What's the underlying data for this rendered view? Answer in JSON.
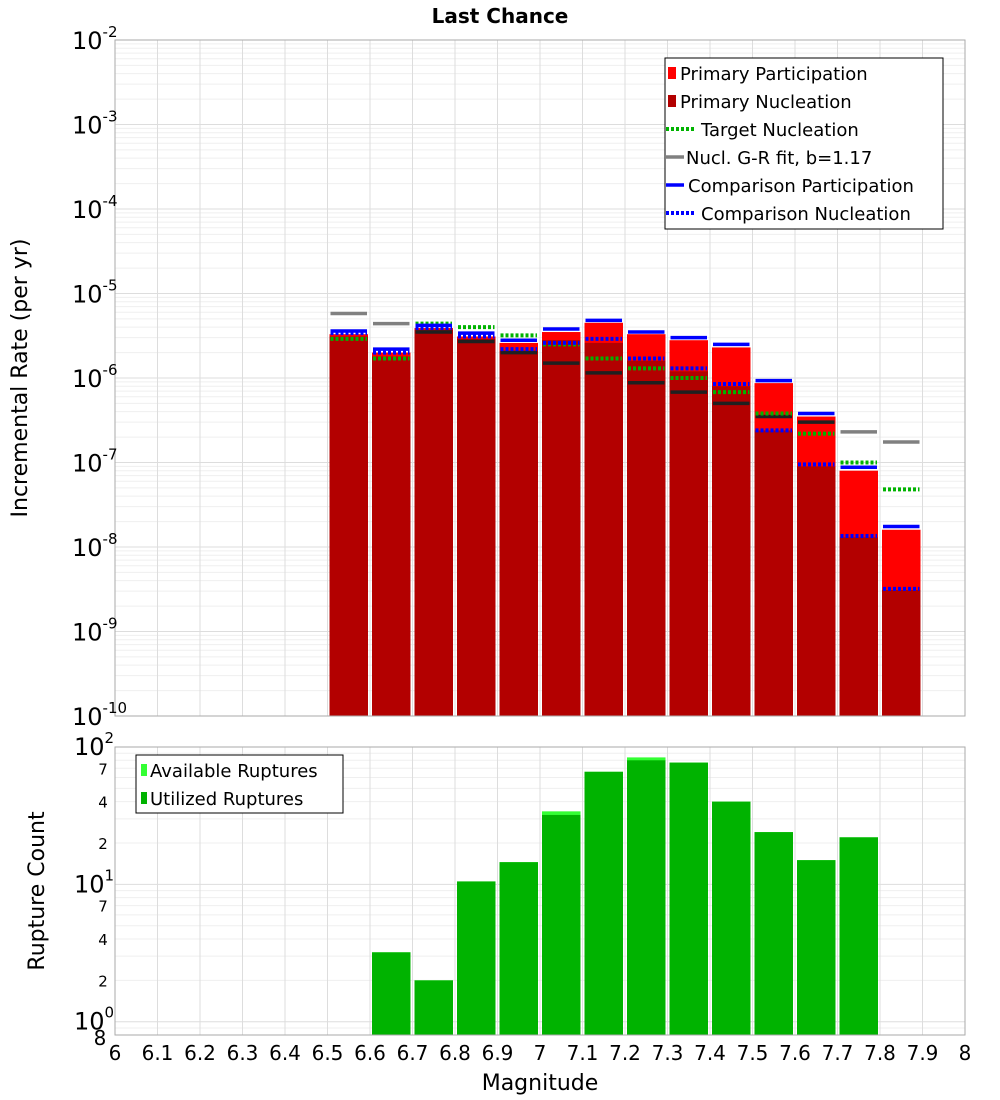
{
  "chart_data": [
    {
      "type": "bar",
      "title": "Last Chance",
      "ylabel": "Incremental Rate (per yr)",
      "yscale": "log",
      "ylim": [
        1e-10,
        0.01
      ],
      "xlim": [
        6,
        8
      ],
      "grid": true,
      "legend_position": "top-right",
      "bin_centers": [
        6.55,
        6.65,
        6.75,
        6.85,
        6.95,
        7.05,
        7.15,
        7.25,
        7.35,
        7.45,
        7.55,
        7.65,
        7.75,
        7.85
      ],
      "series": [
        {
          "name": "Primary Participation",
          "style": "bar",
          "color": "#ff0000",
          "values": [
            3.3e-06,
            2e-06,
            3.9e-06,
            3.1e-06,
            2.6e-06,
            3.5e-06,
            4.5e-06,
            3.3e-06,
            2.8e-06,
            2.3e-06,
            8.7e-07,
            3.5e-07,
            8e-08,
            1.6e-08
          ]
        },
        {
          "name": "Primary Nucleation",
          "style": "bar",
          "color": "#b30000",
          "values": [
            3.1e-06,
            1.8e-06,
            3.7e-06,
            2.9e-06,
            2.1e-06,
            2.8e-06,
            2.6e-06,
            1.6e-06,
            1.2e-06,
            8e-07,
            2.4e-07,
            9e-08,
            1.3e-08,
            3.1e-09
          ]
        },
        {
          "name": "Target Nucleation",
          "style": "dotted",
          "color": "#00b300",
          "values": [
            2.9e-06,
            1.7e-06,
            4.4e-06,
            4e-06,
            3.2e-06,
            2.5e-06,
            1.7e-06,
            1.3e-06,
            1e-06,
            6.8e-07,
            3.8e-07,
            2.2e-07,
            1e-07,
            4.8e-08
          ]
        },
        {
          "name": "Nucl. G-R fit, b=1.17",
          "style": "solid",
          "color": "#808080",
          "values": [
            5.8e-06,
            4.4e-06,
            null,
            null,
            null,
            null,
            null,
            null,
            null,
            null,
            null,
            null,
            2.3e-07,
            1.75e-07
          ]
        },
        {
          "name": "Comparison Participation",
          "style": "solid",
          "color": "#0000ff",
          "values": [
            3.6e-06,
            2.2e-06,
            4.2e-06,
            3.4e-06,
            2.8e-06,
            3.8e-06,
            4.8e-06,
            3.5e-06,
            3e-06,
            2.5e-06,
            9.3e-07,
            3.8e-07,
            8.8e-08,
            1.75e-08
          ]
        },
        {
          "name": "Comparison Nucleation",
          "style": "dotted",
          "color": "#0000ff",
          "values": [
            3.4e-06,
            2e-06,
            3.9e-06,
            3.1e-06,
            2.2e-06,
            2.6e-06,
            2.9e-06,
            1.7e-06,
            1.3e-06,
            8.5e-07,
            2.4e-07,
            9.5e-08,
            1.35e-08,
            3.2e-09
          ]
        }
      ],
      "extra_lines": {
        "color": "#202020",
        "values": [
          null,
          null,
          3.5e-06,
          2.7e-06,
          2e-06,
          1.5e-06,
          1.15e-06,
          8.8e-07,
          6.8e-07,
          5e-07,
          3.5e-07,
          3e-07,
          null,
          null
        ]
      }
    },
    {
      "type": "bar",
      "xlabel": "Magnitude",
      "ylabel": "Rupture Count",
      "yscale": "log",
      "ylim": [
        0.8,
        100
      ],
      "xlim": [
        6,
        8
      ],
      "grid": true,
      "legend_position": "top-left",
      "bin_centers": [
        6.65,
        6.75,
        6.85,
        6.95,
        7.05,
        7.15,
        7.25,
        7.35,
        7.45,
        7.55,
        7.65,
        7.75
      ],
      "series": [
        {
          "name": "Available Ruptures",
          "color": "#33ff33",
          "values": [
            3.2,
            2.0,
            10.5,
            14.5,
            34.0,
            66.0,
            84.0,
            77.0,
            40.0,
            24.0,
            15.0,
            22.0
          ]
        },
        {
          "name": "Utilized Ruptures",
          "color": "#00b300",
          "values": [
            3.2,
            2.0,
            10.5,
            14.5,
            32.0,
            66.0,
            80.0,
            77.0,
            40.0,
            24.0,
            15.0,
            22.0
          ]
        }
      ]
    }
  ],
  "top_axis": {
    "tick_labels": [
      {
        "v": 0.01,
        "base": "10",
        "exp": "-2"
      },
      {
        "v": 0.001,
        "base": "10",
        "exp": "-3"
      },
      {
        "v": 0.0001,
        "base": "10",
        "exp": "-4"
      },
      {
        "v": 1e-05,
        "base": "10",
        "exp": "-5"
      },
      {
        "v": 1e-06,
        "base": "10",
        "exp": "-6"
      },
      {
        "v": 1e-07,
        "base": "10",
        "exp": "-7"
      },
      {
        "v": 1e-08,
        "base": "10",
        "exp": "-8"
      },
      {
        "v": 1e-09,
        "base": "10",
        "exp": "-9"
      },
      {
        "v": 1e-10,
        "base": "10",
        "exp": "-10"
      }
    ]
  },
  "bottom_axis": {
    "major_labels": [
      {
        "v": 100,
        "base": "10",
        "exp": "2"
      },
      {
        "v": 10,
        "base": "10",
        "exp": "1"
      },
      {
        "v": 1,
        "base": "10",
        "exp": "0"
      }
    ],
    "minor_labels": [
      {
        "v": 70,
        "text": "7"
      },
      {
        "v": 40,
        "text": "4"
      },
      {
        "v": 20,
        "text": "2"
      },
      {
        "v": 7,
        "text": "7"
      },
      {
        "v": 4,
        "text": "4"
      },
      {
        "v": 2,
        "text": "2"
      },
      {
        "v": 0.8,
        "text": "8"
      }
    ],
    "x_tick_labels": [
      "6",
      "6.1",
      "6.2",
      "6.3",
      "6.4",
      "6.5",
      "6.6",
      "6.7",
      "6.8",
      "6.9",
      "7",
      "7.1",
      "7.2",
      "7.3",
      "7.4",
      "7.5",
      "7.6",
      "7.7",
      "7.8",
      "7.9",
      "8"
    ]
  }
}
